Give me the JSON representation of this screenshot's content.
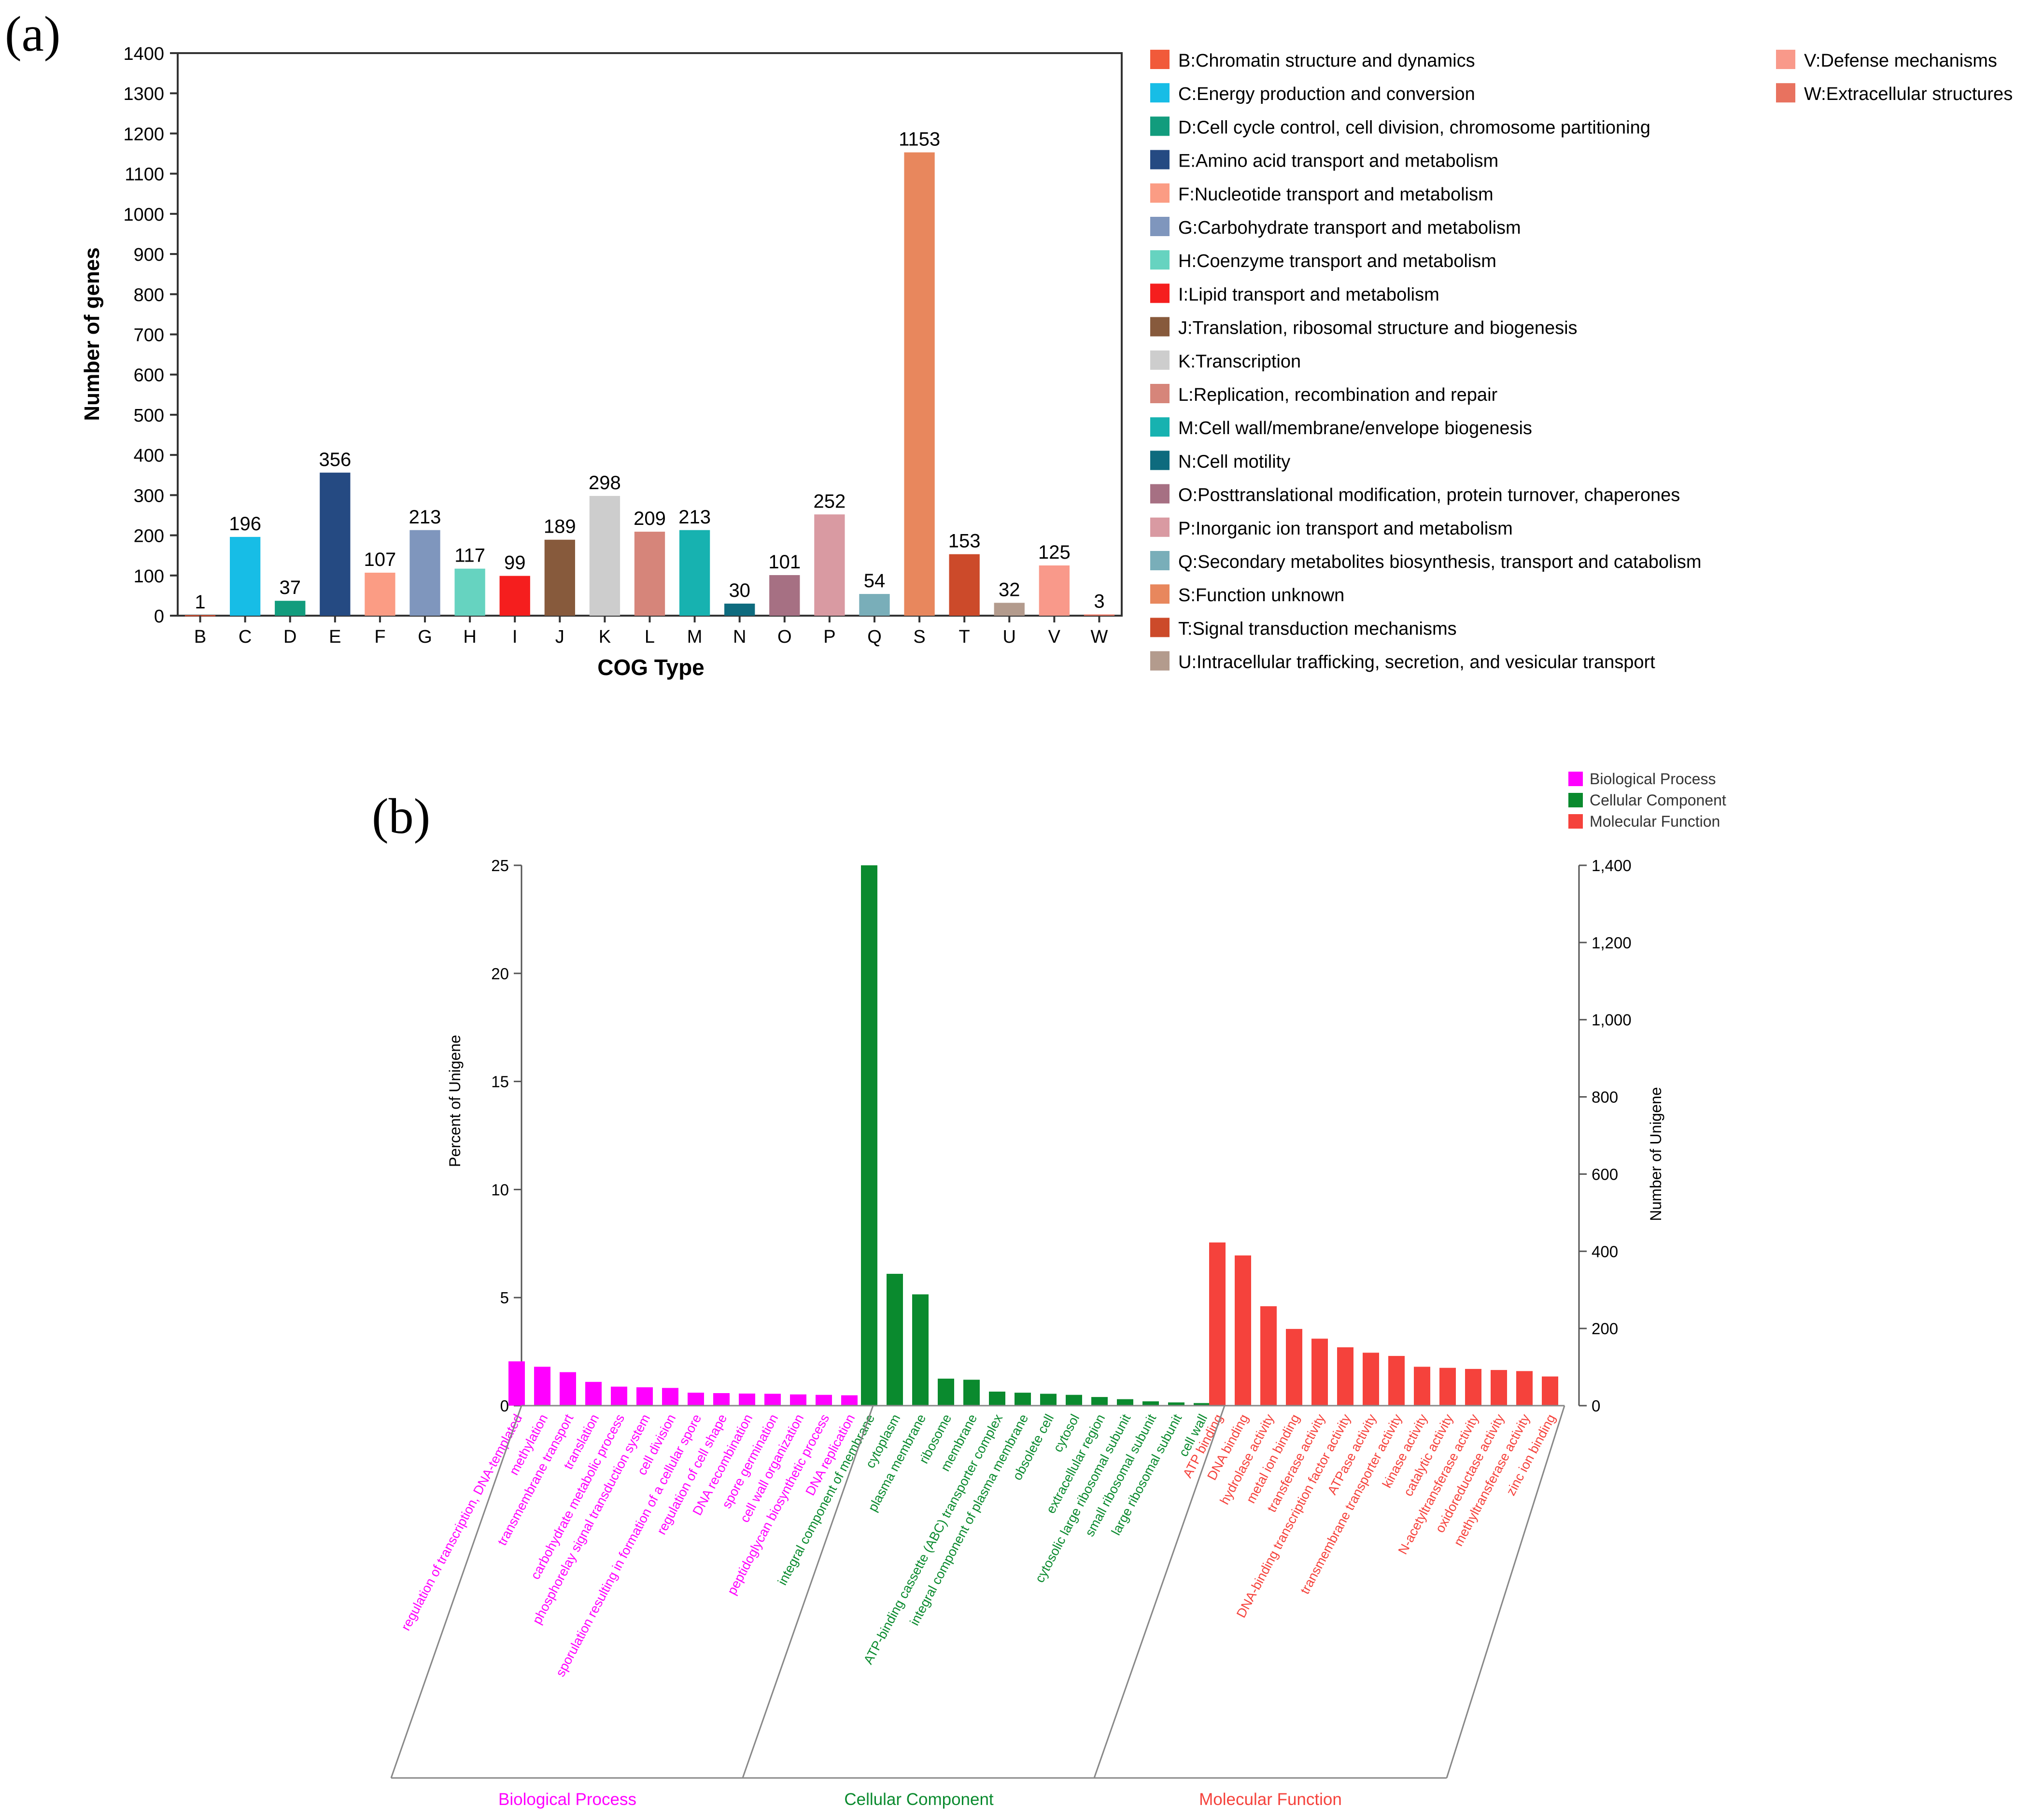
{
  "panel_labels": {
    "a": "(a)",
    "b": "(b)"
  },
  "chart_data": [
    {
      "type": "bar",
      "title": "",
      "xlabel": "COG Type",
      "ylabel": "Number of genes",
      "ylim": [
        0,
        1400
      ],
      "yticks": [
        0,
        100,
        200,
        300,
        400,
        500,
        600,
        700,
        800,
        900,
        1000,
        1100,
        1200,
        1300,
        1400
      ],
      "categories": [
        "B",
        "C",
        "D",
        "E",
        "F",
        "G",
        "H",
        "I",
        "J",
        "K",
        "L",
        "M",
        "N",
        "O",
        "P",
        "Q",
        "S",
        "T",
        "U",
        "V",
        "W"
      ],
      "values": [
        1,
        196,
        37,
        356,
        107,
        213,
        117,
        99,
        189,
        298,
        209,
        213,
        30,
        101,
        252,
        54,
        1153,
        153,
        32,
        125,
        3
      ],
      "colors": [
        "#f15a3a",
        "#17bde6",
        "#129c7d",
        "#254a82",
        "#fb9c84",
        "#7f96bd",
        "#66d3c0",
        "#f51e1e",
        "#875a3c",
        "#cdcdcd",
        "#d6857a",
        "#17b2b0",
        "#0e6b7e",
        "#a67083",
        "#d99aa2",
        "#79aeb9",
        "#e8875d",
        "#cc4a2a",
        "#b39b8d",
        "#f9998a",
        "#e8725f"
      ],
      "legend": [
        "B:Chromatin structure and dynamics",
        "C:Energy production and conversion",
        "D:Cell cycle control, cell division, chromosome partitioning",
        "E:Amino acid transport and metabolism",
        "F:Nucleotide transport and metabolism",
        "G:Carbohydrate transport and metabolism",
        "H:Coenzyme transport and metabolism",
        "I:Lipid transport and metabolism",
        "J:Translation, ribosomal structure and biogenesis",
        "K:Transcription",
        "L:Replication, recombination and repair",
        "M:Cell wall/membrane/envelope biogenesis",
        "N:Cell motility",
        "O:Posttranslational modification, protein turnover, chaperones",
        "P:Inorganic ion transport and metabolism",
        "Q:Secondary metabolites biosynthesis, transport and catabolism",
        "S:Function unknown",
        "T:Signal transduction mechanisms",
        "U:Intracellular trafficking, secretion, and vesicular transport",
        "V:Defense mechanisms",
        "W:Extracellular structures"
      ],
      "grid": false,
      "legend_position": "right"
    },
    {
      "type": "bar",
      "title": "",
      "ylabel": "Percent of Unigene",
      "y2label": "Number of Unigene",
      "ylim": [
        0,
        25
      ],
      "y2lim": [
        0,
        1400
      ],
      "yticks": [
        "0",
        "5",
        "10",
        "15",
        "20",
        "25"
      ],
      "y2ticks": [
        "0",
        "200",
        "400",
        "600",
        "800",
        "1,000",
        "1,200",
        "1,400"
      ],
      "legend_position": "top-right",
      "series": [
        {
          "name": "Biological Process",
          "color": "#ff00ff",
          "categories": [
            "regulation of transcription, DNA-templated",
            "methylation",
            "transmembrane transport",
            "translation",
            "carbohydrate metabolic process",
            "phosphorelay signal transduction system",
            "cell division",
            "sporulation resulting in formation of a cellular spore",
            "regulation of cell shape",
            "DNA recombination",
            "spore germination",
            "cell wall organization",
            "peptidoglycan biosynthetic process",
            "DNA replication"
          ],
          "values": [
            2.05,
            1.8,
            1.55,
            1.1,
            0.88,
            0.85,
            0.82,
            0.6,
            0.58,
            0.56,
            0.55,
            0.52,
            0.5,
            0.48
          ]
        },
        {
          "name": "Cellular Component",
          "color": "#0a8a2e",
          "categories": [
            "integral component of membrane",
            "cytoplasm",
            "plasma membrane",
            "ribosome",
            "membrane",
            "ATP-binding cassette (ABC) transporter complex",
            "integral component of plasma membrane",
            "obsolete cell",
            "cytosol",
            "extracellular region",
            "cytosolic large ribosomal subunit",
            "small ribosomal subunit",
            "large ribosomal subunit",
            "cell wall"
          ],
          "values": [
            25,
            6.1,
            5.15,
            1.25,
            1.2,
            0.65,
            0.6,
            0.55,
            0.5,
            0.4,
            0.3,
            0.2,
            0.15,
            0.12
          ]
        },
        {
          "name": "Molecular Function",
          "color": "#f5423c",
          "categories": [
            "ATP binding",
            "DNA binding",
            "hydrolase activity",
            "metal ion binding",
            "transferase activity",
            "DNA-binding transcription factor activity",
            "ATPase activity",
            "transmembrane transporter activity",
            "kinase activity",
            "catalytic activity",
            "N-acetyltransferase activity",
            "oxidoreductase activity",
            "methyltransferase activity",
            "zinc ion binding"
          ],
          "values": [
            7.55,
            6.95,
            4.6,
            3.55,
            3.1,
            2.7,
            2.45,
            2.3,
            1.8,
            1.75,
            1.7,
            1.65,
            1.6,
            1.35
          ]
        }
      ],
      "group_labels": [
        "Biological Process",
        "Cellular Component",
        "Molecular Function"
      ]
    }
  ]
}
